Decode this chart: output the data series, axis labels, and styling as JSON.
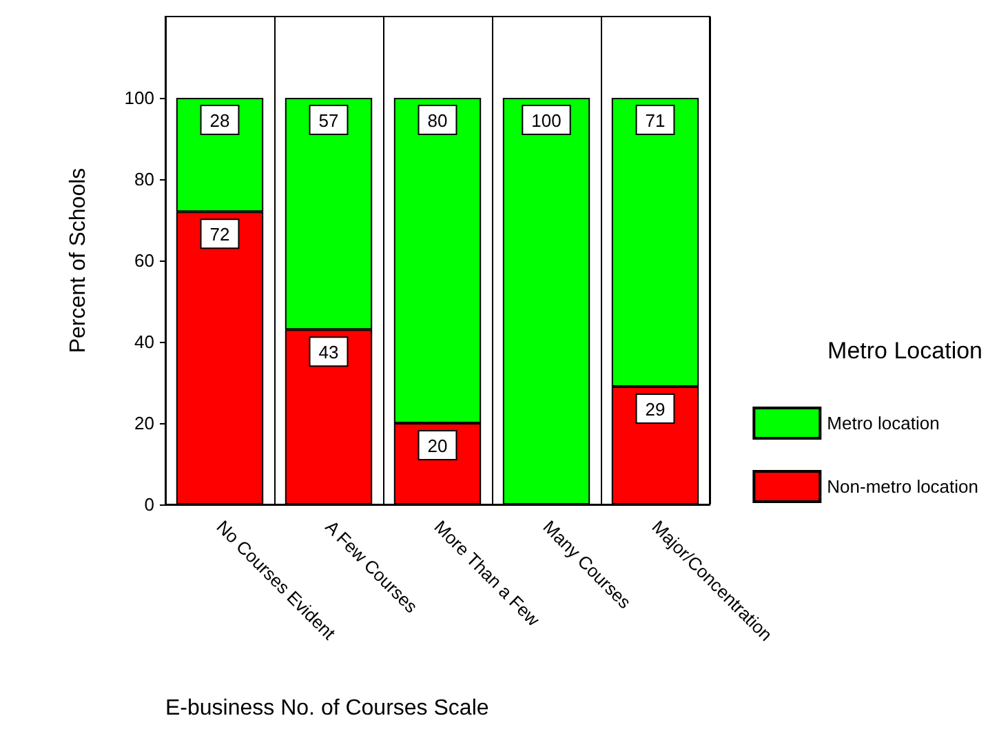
{
  "chart_data": {
    "type": "bar",
    "stacked": true,
    "xlabel": "E-business No. of Courses Scale",
    "ylabel": "Percent of Schools",
    "legend_title": "Metro Location",
    "categories": [
      "No Courses Evident",
      "A Few Courses",
      "More Than a Few",
      "Many Courses",
      "Major/Concentration"
    ],
    "series": [
      {
        "name": "Non-metro location",
        "color": "#ff0000",
        "values": [
          72,
          43,
          20,
          0,
          29
        ],
        "value_labels": [
          "72",
          "43",
          "20",
          null,
          "29"
        ]
      },
      {
        "name": "Metro location",
        "color": "#00ff00",
        "values": [
          28,
          57,
          80,
          100,
          71
        ],
        "value_labels": [
          "28",
          "57",
          "80",
          "100",
          "71"
        ]
      }
    ],
    "ylim": [
      0,
      120
    ],
    "yticks": [
      0,
      20,
      40,
      60,
      80,
      100
    ],
    "grid": "x",
    "legend": "right"
  }
}
